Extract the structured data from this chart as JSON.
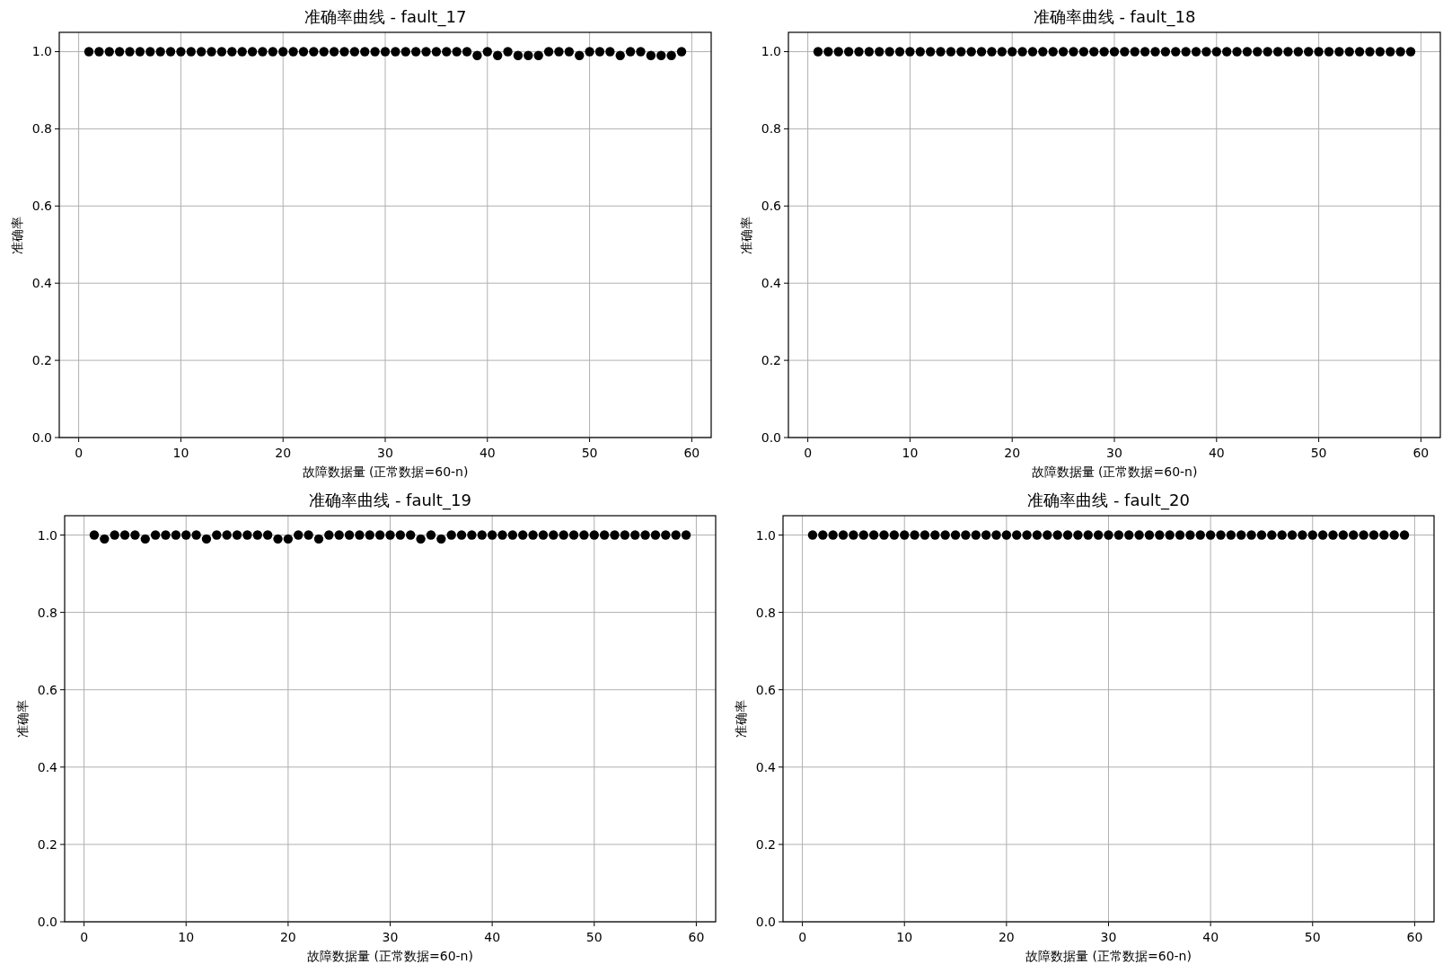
{
  "chart_data": [
    {
      "type": "scatter",
      "title": "准确率曲线 - fault_17",
      "xlabel": "故障数据量 (正常数据=60-n)",
      "ylabel": "准确率",
      "color": "#000000",
      "marker": "circle",
      "grid": true,
      "xlim": [
        -1.9,
        61.9
      ],
      "ylim": [
        0,
        1.05
      ],
      "xticks": [
        0,
        10,
        20,
        30,
        40,
        50,
        60
      ],
      "yticks": [
        {
          "value": 0,
          "label": "0.0"
        },
        {
          "value": 0.2,
          "label": "0.2"
        },
        {
          "value": 0.4,
          "label": "0.4"
        },
        {
          "value": 0.6,
          "label": "0.6"
        },
        {
          "value": 0.8,
          "label": "0.8"
        },
        {
          "value": 1,
          "label": "1.0"
        }
      ],
      "x": [
        1,
        2,
        3,
        4,
        5,
        6,
        7,
        8,
        9,
        10,
        11,
        12,
        13,
        14,
        15,
        16,
        17,
        18,
        19,
        20,
        21,
        22,
        23,
        24,
        25,
        26,
        27,
        28,
        29,
        30,
        31,
        32,
        33,
        34,
        35,
        36,
        37,
        38,
        39,
        40,
        41,
        42,
        43,
        44,
        45,
        46,
        47,
        48,
        49,
        50,
        51,
        52,
        53,
        54,
        55,
        56,
        57,
        58,
        59
      ],
      "values": [
        1,
        1,
        1,
        1,
        1,
        1,
        1,
        1,
        1,
        1,
        1,
        1,
        1,
        1,
        1,
        1,
        1,
        1,
        1,
        1,
        1,
        1,
        1,
        1,
        1,
        1,
        1,
        1,
        1,
        1,
        1,
        1,
        1,
        1,
        1,
        1,
        1,
        1,
        0.99,
        1,
        0.99,
        1,
        0.99,
        0.99,
        0.99,
        1,
        1,
        1,
        0.99,
        1,
        1,
        1,
        0.99,
        1,
        1,
        0.99,
        0.99,
        0.99,
        1
      ]
    },
    {
      "type": "scatter",
      "title": "准确率曲线 - fault_18",
      "xlabel": "故障数据量 (正常数据=60-n)",
      "ylabel": "准确率",
      "color": "#000000",
      "marker": "circle",
      "grid": true,
      "xlim": [
        -1.9,
        61.9
      ],
      "ylim": [
        0,
        1.05
      ],
      "xticks": [
        0,
        10,
        20,
        30,
        40,
        50,
        60
      ],
      "yticks": [
        {
          "value": 0,
          "label": "0.0"
        },
        {
          "value": 0.2,
          "label": "0.2"
        },
        {
          "value": 0.4,
          "label": "0.4"
        },
        {
          "value": 0.6,
          "label": "0.6"
        },
        {
          "value": 0.8,
          "label": "0.8"
        },
        {
          "value": 1,
          "label": "1.0"
        }
      ],
      "x": [
        1,
        2,
        3,
        4,
        5,
        6,
        7,
        8,
        9,
        10,
        11,
        12,
        13,
        14,
        15,
        16,
        17,
        18,
        19,
        20,
        21,
        22,
        23,
        24,
        25,
        26,
        27,
        28,
        29,
        30,
        31,
        32,
        33,
        34,
        35,
        36,
        37,
        38,
        39,
        40,
        41,
        42,
        43,
        44,
        45,
        46,
        47,
        48,
        49,
        50,
        51,
        52,
        53,
        54,
        55,
        56,
        57,
        58,
        59
      ],
      "values": [
        1,
        1,
        1,
        1,
        1,
        1,
        1,
        1,
        1,
        1,
        1,
        1,
        1,
        1,
        1,
        1,
        1,
        1,
        1,
        1,
        1,
        1,
        1,
        1,
        1,
        1,
        1,
        1,
        1,
        1,
        1,
        1,
        1,
        1,
        1,
        1,
        1,
        1,
        1,
        1,
        1,
        1,
        1,
        1,
        1,
        1,
        1,
        1,
        1,
        1,
        1,
        1,
        1,
        1,
        1,
        1,
        1,
        1,
        1
      ]
    },
    {
      "type": "scatter",
      "title": "准确率曲线 - fault_19",
      "xlabel": "故障数据量 (正常数据=60-n)",
      "ylabel": "准确率",
      "color": "#000000",
      "marker": "circle",
      "grid": true,
      "xlim": [
        -1.9,
        61.9
      ],
      "ylim": [
        0,
        1.05
      ],
      "xticks": [
        0,
        10,
        20,
        30,
        40,
        50,
        60
      ],
      "yticks": [
        {
          "value": 0,
          "label": "0.0"
        },
        {
          "value": 0.2,
          "label": "0.2"
        },
        {
          "value": 0.4,
          "label": "0.4"
        },
        {
          "value": 0.6,
          "label": "0.6"
        },
        {
          "value": 0.8,
          "label": "0.8"
        },
        {
          "value": 1,
          "label": "1.0"
        }
      ],
      "x": [
        1,
        2,
        3,
        4,
        5,
        6,
        7,
        8,
        9,
        10,
        11,
        12,
        13,
        14,
        15,
        16,
        17,
        18,
        19,
        20,
        21,
        22,
        23,
        24,
        25,
        26,
        27,
        28,
        29,
        30,
        31,
        32,
        33,
        34,
        35,
        36,
        37,
        38,
        39,
        40,
        41,
        42,
        43,
        44,
        45,
        46,
        47,
        48,
        49,
        50,
        51,
        52,
        53,
        54,
        55,
        56,
        57,
        58,
        59
      ],
      "values": [
        1,
        0.99,
        1,
        1,
        1,
        0.99,
        1,
        1,
        1,
        1,
        1,
        0.99,
        1,
        1,
        1,
        1,
        1,
        1,
        0.99,
        0.99,
        1,
        1,
        0.99,
        1,
        1,
        1,
        1,
        1,
        1,
        1,
        1,
        1,
        0.99,
        1,
        0.99,
        1,
        1,
        1,
        1,
        1,
        1,
        1,
        1,
        1,
        1,
        1,
        1,
        1,
        1,
        1,
        1,
        1,
        1,
        1,
        1,
        1,
        1,
        1,
        1
      ]
    },
    {
      "type": "scatter",
      "title": "准确率曲线 - fault_20",
      "xlabel": "故障数据量 (正常数据=60-n)",
      "ylabel": "准确率",
      "color": "#000000",
      "marker": "circle",
      "grid": true,
      "xlim": [
        -1.9,
        61.9
      ],
      "ylim": [
        0,
        1.05
      ],
      "xticks": [
        0,
        10,
        20,
        30,
        40,
        50,
        60
      ],
      "yticks": [
        {
          "value": 0,
          "label": "0.0"
        },
        {
          "value": 0.2,
          "label": "0.2"
        },
        {
          "value": 0.4,
          "label": "0.4"
        },
        {
          "value": 0.6,
          "label": "0.6"
        },
        {
          "value": 0.8,
          "label": "0.8"
        },
        {
          "value": 1,
          "label": "1.0"
        }
      ],
      "x": [
        1,
        2,
        3,
        4,
        5,
        6,
        7,
        8,
        9,
        10,
        11,
        12,
        13,
        14,
        15,
        16,
        17,
        18,
        19,
        20,
        21,
        22,
        23,
        24,
        25,
        26,
        27,
        28,
        29,
        30,
        31,
        32,
        33,
        34,
        35,
        36,
        37,
        38,
        39,
        40,
        41,
        42,
        43,
        44,
        45,
        46,
        47,
        48,
        49,
        50,
        51,
        52,
        53,
        54,
        55,
        56,
        57,
        58,
        59
      ],
      "values": [
        1,
        1,
        1,
        1,
        1,
        1,
        1,
        1,
        1,
        1,
        1,
        1,
        1,
        1,
        1,
        1,
        1,
        1,
        1,
        1,
        1,
        1,
        1,
        1,
        1,
        1,
        1,
        1,
        1,
        1,
        1,
        1,
        1,
        1,
        1,
        1,
        1,
        1,
        1,
        1,
        1,
        1,
        1,
        1,
        1,
        1,
        1,
        1,
        1,
        1,
        1,
        1,
        1,
        1,
        1,
        1,
        1,
        1,
        1
      ]
    }
  ]
}
